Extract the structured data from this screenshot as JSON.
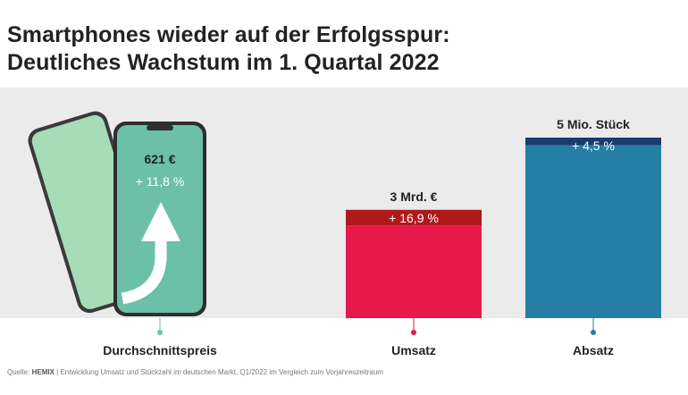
{
  "title_line1": "Smartphones wieder auf der Erfolgsspur:",
  "title_line2": "Deutliches Wachstum im 1. Quartal 2022",
  "chart_data": {
    "type": "bar",
    "categories": [
      "Durchschnittspreis",
      "Umsatz",
      "Absatz"
    ],
    "values_labels": [
      "621 €",
      "3 Mrd. €",
      "5 Mio. Stück"
    ],
    "growth_labels": [
      "+ 11,8 %",
      "+ 16,9 %",
      "+ 4,5 %"
    ],
    "growth_percent": [
      11.8,
      16.9,
      4.5
    ],
    "bar_heights_relative": {
      "Umsatz": 3,
      "Absatz": 5
    },
    "colors": {
      "phone_screen": "#6dc0a8",
      "phone_back": "#a6dcb8",
      "umsatz_base": "#e6194a",
      "umsatz_growth": "#b0191c",
      "absatz_base": "#257ea6",
      "absatz_growth": "#1b3b6f",
      "panel_bg": "#ebebeb"
    }
  },
  "source": {
    "prefix": "Quelle: ",
    "brand": "HEMIX",
    "text": "| Entwicklung Umsatz und Stückzahl im deutschen Markt, Q1/2022 im Vergleich zum Vorjahreszeitraum"
  }
}
